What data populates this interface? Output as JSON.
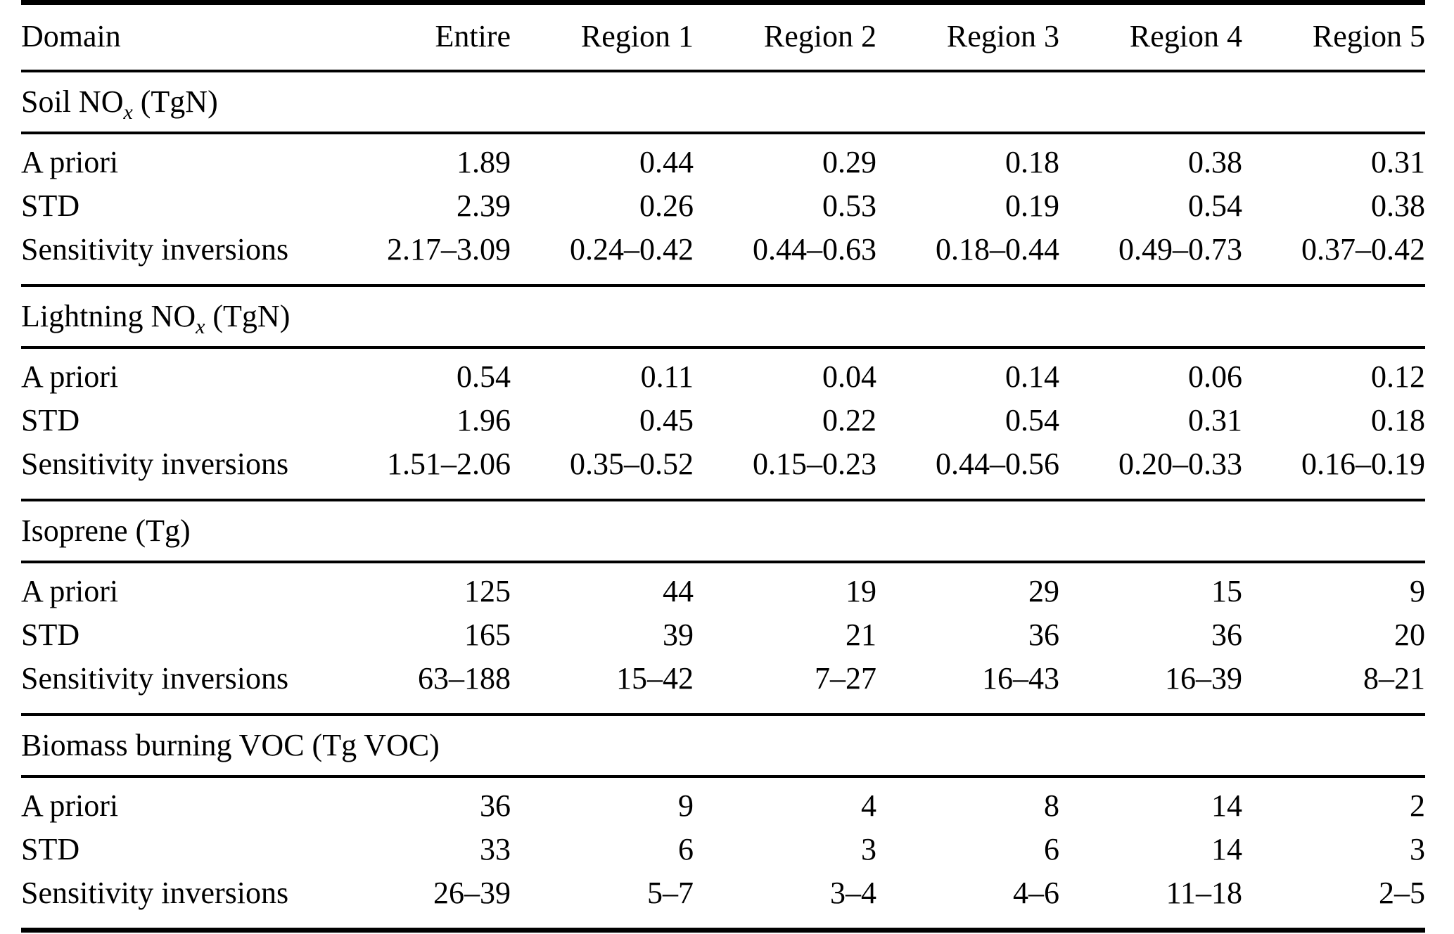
{
  "table": {
    "columns": [
      "Domain",
      "Entire",
      "Region 1",
      "Region 2",
      "Region 3",
      "Region 4",
      "Region 5"
    ],
    "sections": [
      {
        "title": {
          "prefix": "Soil NO",
          "sub": "x",
          "suffix": " (TgN)"
        },
        "rows": [
          {
            "label": "A priori",
            "values": [
              "1.89",
              "0.44",
              "0.29",
              "0.18",
              "0.38",
              "0.31"
            ]
          },
          {
            "label": "STD",
            "values": [
              "2.39",
              "0.26",
              "0.53",
              "0.19",
              "0.54",
              "0.38"
            ]
          },
          {
            "label": "Sensitivity inversions",
            "values": [
              "2.17–3.09",
              "0.24–0.42",
              "0.44–0.63",
              "0.18–0.44",
              "0.49–0.73",
              "0.37–0.42"
            ]
          }
        ]
      },
      {
        "title": {
          "prefix": "Lightning NO",
          "sub": "x",
          "suffix": " (TgN)"
        },
        "rows": [
          {
            "label": "A priori",
            "values": [
              "0.54",
              "0.11",
              "0.04",
              "0.14",
              "0.06",
              "0.12"
            ]
          },
          {
            "label": "STD",
            "values": [
              "1.96",
              "0.45",
              "0.22",
              "0.54",
              "0.31",
              "0.18"
            ]
          },
          {
            "label": "Sensitivity inversions",
            "values": [
              "1.51–2.06",
              "0.35–0.52",
              "0.15–0.23",
              "0.44–0.56",
              "0.20–0.33",
              "0.16–0.19"
            ]
          }
        ]
      },
      {
        "title": {
          "prefix": "Isoprene (Tg)",
          "sub": "",
          "suffix": ""
        },
        "rows": [
          {
            "label": "A priori",
            "values": [
              "125",
              "44",
              "19",
              "29",
              "15",
              "9"
            ]
          },
          {
            "label": "STD",
            "values": [
              "165",
              "39",
              "21",
              "36",
              "36",
              "20"
            ]
          },
          {
            "label": "Sensitivity inversions",
            "values": [
              "63–188",
              "15–42",
              "7–27",
              "16–43",
              "16–39",
              "8–21"
            ]
          }
        ]
      },
      {
        "title": {
          "prefix": "Biomass burning VOC (Tg VOC)",
          "sub": "",
          "suffix": ""
        },
        "rows": [
          {
            "label": "A priori",
            "values": [
              "36",
              "9",
              "4",
              "8",
              "14",
              "2"
            ]
          },
          {
            "label": "STD",
            "values": [
              "33",
              "6",
              "3",
              "6",
              "14",
              "3"
            ]
          },
          {
            "label": "Sensitivity inversions",
            "values": [
              "26–39",
              "5–7",
              "3–4",
              "4–6",
              "11–18",
              "2–5"
            ]
          }
        ]
      }
    ]
  }
}
